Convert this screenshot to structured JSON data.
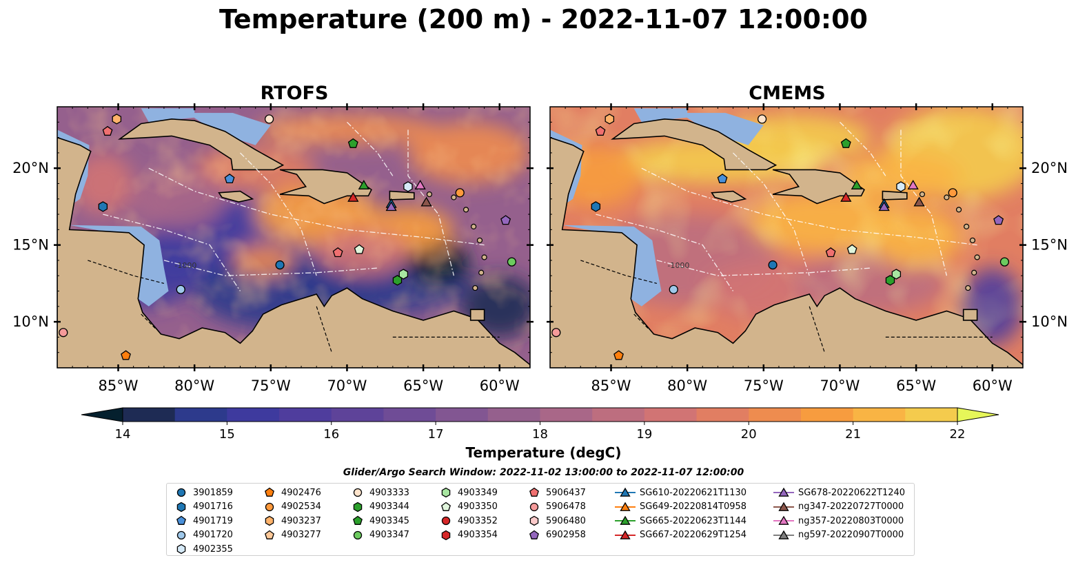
{
  "title": "Temperature (200 m) - 2022-11-07 12:00:00",
  "panels": [
    {
      "title": "RTOFS",
      "variant": "rtofs"
    },
    {
      "title": "CMEMS",
      "variant": "cmems"
    }
  ],
  "map": {
    "lon_range": [
      -89,
      -58
    ],
    "lat_range": [
      7,
      24
    ],
    "lon_ticks": [
      {
        "value": -85,
        "label": "85°W"
      },
      {
        "value": -80,
        "label": "80°W"
      },
      {
        "value": -75,
        "label": "75°W"
      },
      {
        "value": -70,
        "label": "70°W"
      },
      {
        "value": -65,
        "label": "65°W"
      },
      {
        "value": -60,
        "label": "60°W"
      }
    ],
    "lat_ticks": [
      {
        "value": 10,
        "label": "10°N"
      },
      {
        "value": 15,
        "label": "15°N"
      },
      {
        "value": 20,
        "label": "20°N"
      }
    ],
    "land_color": "#d2b48c",
    "shelf_color": "#8fb2e0",
    "annotation_text": "-1000"
  },
  "colorbar": {
    "label": "Temperature (degC)",
    "min": 14,
    "max": 22,
    "step": 0.5,
    "ticks": [
      "14",
      "15",
      "16",
      "17",
      "18",
      "19",
      "20",
      "21",
      "22"
    ],
    "colors": [
      "#05202e",
      "#1e2b54",
      "#2d3a8c",
      "#3e3a9e",
      "#4f3d9d",
      "#5e4399",
      "#6f4c96",
      "#825692",
      "#95608d",
      "#a96788",
      "#bd6e7f",
      "#d17474",
      "#e17e62",
      "#ee8c4f",
      "#f79c3f",
      "#f9b444",
      "#f4cb4d",
      "#e6f659"
    ]
  },
  "legend": {
    "title": "Glider/Argo Search Window: 2022-11-02 13:00:00 to 2022-11-07 12:00:00",
    "entries": [
      {
        "label": "3901859",
        "marker": "circle",
        "color": "#1f77b4"
      },
      {
        "label": "4901716",
        "marker": "hexagon",
        "color": "#1f77b4"
      },
      {
        "label": "4901719",
        "marker": "pentagon",
        "color": "#4a90d9"
      },
      {
        "label": "4901720",
        "marker": "circle",
        "color": "#9fc8ea"
      },
      {
        "label": "4902355",
        "marker": "hexagon",
        "color": "#d6eaf8"
      },
      {
        "label": "4902476",
        "marker": "pentagon",
        "color": "#ff7f0e"
      },
      {
        "label": "4902534",
        "marker": "circle",
        "color": "#ff9a3c"
      },
      {
        "label": "4903237",
        "marker": "hexagon",
        "color": "#ffb36b"
      },
      {
        "label": "4903277",
        "marker": "pentagon",
        "color": "#ffc999"
      },
      {
        "label": "4903333",
        "marker": "circle",
        "color": "#ffe4cc"
      },
      {
        "label": "4903344",
        "marker": "hexagon",
        "color": "#2ca02c"
      },
      {
        "label": "4903345",
        "marker": "pentagon",
        "color": "#2ca02c"
      },
      {
        "label": "4903347",
        "marker": "circle",
        "color": "#6ccb5f"
      },
      {
        "label": "4903349",
        "marker": "hexagon",
        "color": "#a8e6a1"
      },
      {
        "label": "4903350",
        "marker": "pentagon",
        "color": "#e0f5dc"
      },
      {
        "label": "4903352",
        "marker": "circle",
        "color": "#d62728"
      },
      {
        "label": "4903354",
        "marker": "hexagon",
        "color": "#d62728"
      },
      {
        "label": "5906437",
        "marker": "pentagon",
        "color": "#f07070"
      },
      {
        "label": "5906478",
        "marker": "circle",
        "color": "#f59a9a"
      },
      {
        "label": "5906480",
        "marker": "hexagon",
        "color": "#fbcaca"
      },
      {
        "label": "6902958",
        "marker": "pentagon",
        "color": "#9467bd"
      },
      {
        "label": "SG610-20220621T1130",
        "marker": "triangle",
        "color": "#1f77b4",
        "line": true
      },
      {
        "label": "SG649-20220814T0958",
        "marker": "triangle",
        "color": "#ff7f0e",
        "line": true
      },
      {
        "label": "SG665-20220623T1144",
        "marker": "triangle",
        "color": "#2ca02c",
        "line": true
      },
      {
        "label": "SG667-20220629T1254",
        "marker": "triangle",
        "color": "#d62728",
        "line": true
      },
      {
        "label": "SG678-20220622T1240",
        "marker": "triangle",
        "color": "#9467bd",
        "line": true
      },
      {
        "label": "ng347-20220727T0000",
        "marker": "triangle",
        "color": "#8c564b",
        "line": true
      },
      {
        "label": "ng357-20220803T0000",
        "marker": "triangle",
        "color": "#e377c2",
        "line": true
      },
      {
        "label": "ng597-20220907T0000",
        "marker": "triangle",
        "color": "#7f7f7f",
        "line": true
      }
    ]
  },
  "stations": [
    {
      "id": "4903237",
      "lon": -85.1,
      "lat": 23.2
    },
    {
      "id": "5906437",
      "lon": -85.7,
      "lat": 22.4
    },
    {
      "id": "4903333",
      "lon": -75.1,
      "lat": 23.2
    },
    {
      "id": "4903345",
      "lon": -69.6,
      "lat": 21.6
    },
    {
      "id": "4901719",
      "lon": -77.7,
      "lat": 19.3
    },
    {
      "id": "4901716",
      "lon": -86.0,
      "lat": 17.5
    },
    {
      "id": "SG665-20220623T1144",
      "lon": -68.9,
      "lat": 18.9
    },
    {
      "id": "4902355",
      "lon": -66.0,
      "lat": 18.8
    },
    {
      "id": "ng357-20220803T0000",
      "lon": -65.2,
      "lat": 18.9
    },
    {
      "id": "4902534",
      "lon": -62.6,
      "lat": 18.4
    },
    {
      "id": "SG667-20220629T1254",
      "lon": -69.6,
      "lat": 18.1
    },
    {
      "id": "SG610-20220621T1130",
      "lon": -67.1,
      "lat": 17.7
    },
    {
      "id": "SG678-20220622T1240",
      "lon": -67.1,
      "lat": 17.5
    },
    {
      "id": "ng347-20220727T0000",
      "lon": -64.8,
      "lat": 17.8
    },
    {
      "id": "6902958",
      "lon": -59.6,
      "lat": 16.6
    },
    {
      "id": "4903350",
      "lon": -69.2,
      "lat": 14.7
    },
    {
      "id": "5906437",
      "lon": -70.6,
      "lat": 14.5
    },
    {
      "id": "3901859",
      "lon": -74.4,
      "lat": 13.7
    },
    {
      "id": "4903347",
      "lon": -59.2,
      "lat": 13.9
    },
    {
      "id": "4903349",
      "lon": -66.3,
      "lat": 13.1
    },
    {
      "id": "4903344",
      "lon": -66.7,
      "lat": 12.7
    },
    {
      "id": "4901720",
      "lon": -80.9,
      "lat": 12.1
    },
    {
      "id": "5906478",
      "lon": -88.6,
      "lat": 9.3
    },
    {
      "id": "4902476",
      "lon": -84.5,
      "lat": 7.8
    }
  ]
}
